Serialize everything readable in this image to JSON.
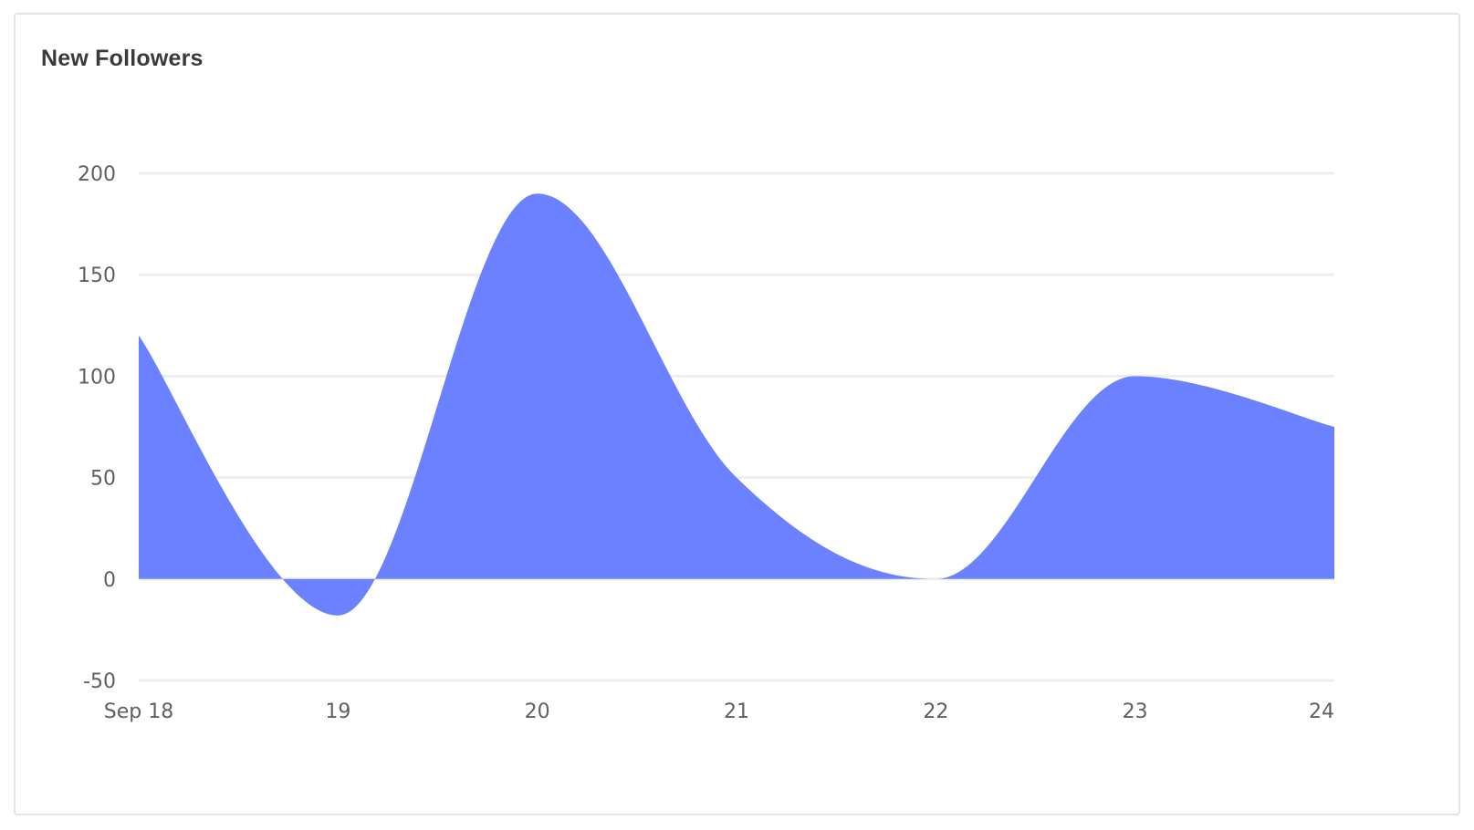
{
  "card": {
    "title": "New Followers"
  },
  "chart_data": {
    "type": "area",
    "title": "New Followers",
    "xlabel": "",
    "ylabel": "",
    "categories": [
      "Sep 18",
      "19",
      "20",
      "21",
      "22",
      "23",
      "24"
    ],
    "series": [
      {
        "name": "",
        "values": [
          120,
          -18,
          190,
          50,
          0,
          100,
          75
        ]
      }
    ],
    "ylim": [
      -50,
      200
    ],
    "yticks": [
      "-50",
      "0",
      "50",
      "100",
      "150",
      "200"
    ],
    "grid": true,
    "smooth": true,
    "colors": {
      "area": "#6c81ff",
      "grid": "#eeeeee",
      "tick_text": "#5f5f5f",
      "title_text": "#3a3a3a",
      "card_border": "#dfe4e8"
    }
  }
}
